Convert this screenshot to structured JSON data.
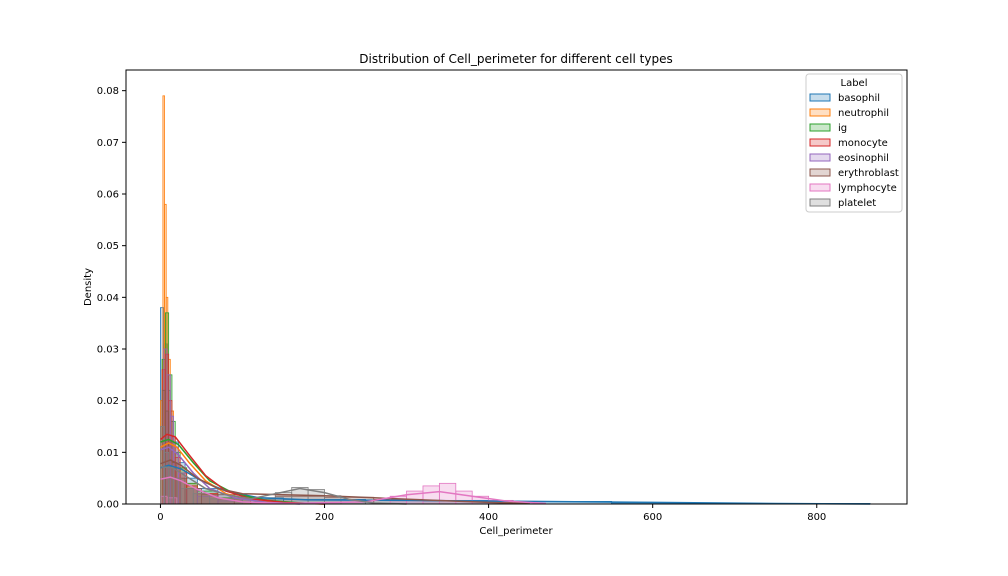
{
  "chart_data": {
    "type": "histogram",
    "title": "Distribution of Cell_perimeter for different cell types",
    "xlabel": "Cell_perimeter",
    "ylabel": "Density",
    "xlim": [
      -42,
      910
    ],
    "ylim": [
      0,
      0.084
    ],
    "x_ticks": [
      0,
      200,
      400,
      600,
      800
    ],
    "y_ticks": [
      0.0,
      0.01,
      0.02,
      0.03,
      0.04,
      0.05,
      0.06,
      0.07,
      0.08
    ],
    "y_tick_labels": [
      "0.00",
      "0.01",
      "0.02",
      "0.03",
      "0.04",
      "0.05",
      "0.06",
      "0.07",
      "0.08"
    ],
    "legend": {
      "title": "Label",
      "placement": "upper-right",
      "entries": [
        "basophil",
        "neutrophil",
        "ig",
        "monocyte",
        "eosinophil",
        "erythroblast",
        "lymphocyte",
        "platelet"
      ]
    },
    "grid": false,
    "series": [
      {
        "name": "basophil",
        "color": "#1f77b4",
        "hist": [
          [
            0,
            4,
            0.038
          ],
          [
            4,
            8,
            0.031
          ],
          [
            8,
            12,
            0.022
          ],
          [
            12,
            16,
            0.016
          ],
          [
            16,
            22,
            0.012
          ],
          [
            22,
            30,
            0.008
          ],
          [
            30,
            45,
            0.005
          ],
          [
            45,
            70,
            0.003
          ],
          [
            70,
            100,
            0.0018
          ],
          [
            100,
            150,
            0.0012
          ],
          [
            150,
            250,
            0.0009
          ],
          [
            250,
            400,
            0.0007
          ],
          [
            400,
            550,
            0.0005
          ],
          [
            550,
            700,
            0.0002
          ],
          [
            700,
            865,
            0.0001
          ]
        ],
        "kde": [
          [
            0,
            0.007
          ],
          [
            10,
            0.0075
          ],
          [
            25,
            0.0068
          ],
          [
            50,
            0.0045
          ],
          [
            80,
            0.0025
          ],
          [
            120,
            0.0012
          ],
          [
            180,
            0.0008
          ],
          [
            300,
            0.0007
          ],
          [
            450,
            0.0005
          ],
          [
            600,
            0.0003
          ],
          [
            750,
            0.0001
          ],
          [
            865,
            0.0
          ]
        ]
      },
      {
        "name": "neutrophil",
        "color": "#ff7f0e",
        "hist": [
          [
            0,
            3,
            0.02
          ],
          [
            3,
            5,
            0.079
          ],
          [
            5,
            7,
            0.058
          ],
          [
            7,
            9,
            0.04
          ],
          [
            9,
            12,
            0.028
          ],
          [
            12,
            16,
            0.018
          ],
          [
            16,
            22,
            0.011
          ],
          [
            22,
            30,
            0.007
          ],
          [
            30,
            45,
            0.004
          ],
          [
            45,
            70,
            0.002
          ],
          [
            70,
            100,
            0.001
          ],
          [
            100,
            150,
            0.0004
          ]
        ],
        "kde": [
          [
            0,
            0.011
          ],
          [
            10,
            0.0118
          ],
          [
            20,
            0.011
          ],
          [
            35,
            0.008
          ],
          [
            55,
            0.0045
          ],
          [
            80,
            0.002
          ],
          [
            110,
            0.0008
          ],
          [
            150,
            0.0002
          ],
          [
            200,
            0.0
          ]
        ]
      },
      {
        "name": "ig",
        "color": "#2ca02c",
        "hist": [
          [
            2,
            6,
            0.028
          ],
          [
            6,
            10,
            0.037
          ],
          [
            10,
            14,
            0.025
          ],
          [
            14,
            18,
            0.016
          ],
          [
            18,
            24,
            0.01
          ],
          [
            24,
            32,
            0.007
          ],
          [
            32,
            45,
            0.004
          ],
          [
            45,
            70,
            0.0025
          ],
          [
            70,
            110,
            0.0012
          ],
          [
            110,
            160,
            0.0004
          ]
        ],
        "kde": [
          [
            0,
            0.012
          ],
          [
            10,
            0.0125
          ],
          [
            22,
            0.0115
          ],
          [
            40,
            0.008
          ],
          [
            60,
            0.0045
          ],
          [
            90,
            0.002
          ],
          [
            130,
            0.0007
          ],
          [
            180,
            0.0001
          ]
        ]
      },
      {
        "name": "monocyte",
        "color": "#d62728",
        "hist": [
          [
            2,
            6,
            0.026
          ],
          [
            6,
            10,
            0.029
          ],
          [
            10,
            14,
            0.02
          ],
          [
            14,
            18,
            0.013
          ],
          [
            18,
            24,
            0.009
          ],
          [
            24,
            32,
            0.006
          ],
          [
            32,
            45,
            0.0035
          ],
          [
            45,
            70,
            0.002
          ],
          [
            70,
            110,
            0.001
          ],
          [
            110,
            160,
            0.0003
          ]
        ],
        "kde": [
          [
            0,
            0.0125
          ],
          [
            8,
            0.0135
          ],
          [
            18,
            0.013
          ],
          [
            35,
            0.0095
          ],
          [
            55,
            0.0055
          ],
          [
            80,
            0.0025
          ],
          [
            110,
            0.001
          ],
          [
            150,
            0.0003
          ],
          [
            200,
            0.0
          ]
        ]
      },
      {
        "name": "eosinophil",
        "color": "#9467bd",
        "hist": [
          [
            4,
            8,
            0.03
          ],
          [
            8,
            12,
            0.025
          ],
          [
            12,
            16,
            0.017
          ],
          [
            16,
            22,
            0.011
          ],
          [
            22,
            30,
            0.006
          ],
          [
            30,
            45,
            0.003
          ],
          [
            45,
            70,
            0.0015
          ],
          [
            70,
            100,
            0.0006
          ]
        ],
        "kde": [
          [
            0,
            0.0105
          ],
          [
            10,
            0.011
          ],
          [
            22,
            0.0095
          ],
          [
            40,
            0.006
          ],
          [
            60,
            0.003
          ],
          [
            90,
            0.0012
          ],
          [
            130,
            0.0003
          ],
          [
            170,
            0.0
          ]
        ]
      },
      {
        "name": "erythroblast",
        "color": "#8c564b",
        "hist": [
          [
            2,
            6,
            0.022
          ],
          [
            6,
            10,
            0.018
          ],
          [
            10,
            14,
            0.012
          ],
          [
            14,
            20,
            0.008
          ],
          [
            20,
            30,
            0.005
          ],
          [
            30,
            50,
            0.003
          ],
          [
            50,
            90,
            0.0018
          ],
          [
            90,
            140,
            0.0012
          ],
          [
            140,
            200,
            0.0015
          ],
          [
            200,
            260,
            0.0013
          ],
          [
            260,
            320,
            0.0009
          ],
          [
            320,
            400,
            0.0006
          ],
          [
            400,
            450,
            0.0003
          ]
        ],
        "kde": [
          [
            0,
            0.0078
          ],
          [
            12,
            0.0085
          ],
          [
            25,
            0.0075
          ],
          [
            45,
            0.005
          ],
          [
            70,
            0.003
          ],
          [
            100,
            0.002
          ],
          [
            150,
            0.0018
          ],
          [
            200,
            0.0016
          ],
          [
            260,
            0.0012
          ],
          [
            320,
            0.0008
          ],
          [
            400,
            0.0003
          ],
          [
            450,
            0.0001
          ]
        ]
      },
      {
        "name": "lymphocyte",
        "color": "#e377c2",
        "hist": [
          [
            0,
            8,
            0.0015
          ],
          [
            8,
            20,
            0.0012
          ],
          [
            280,
            300,
            0.0015
          ],
          [
            300,
            320,
            0.0025
          ],
          [
            320,
            340,
            0.0035
          ],
          [
            340,
            360,
            0.004
          ],
          [
            360,
            380,
            0.0025
          ],
          [
            380,
            400,
            0.0015
          ],
          [
            400,
            430,
            0.0007
          ]
        ],
        "kde": [
          [
            0,
            0.0048
          ],
          [
            12,
            0.0052
          ],
          [
            25,
            0.0045
          ],
          [
            45,
            0.0028
          ],
          [
            70,
            0.0012
          ],
          [
            100,
            0.0004
          ],
          [
            150,
            0.0001
          ],
          [
            250,
            0.0004
          ],
          [
            300,
            0.0018
          ],
          [
            340,
            0.0024
          ],
          [
            380,
            0.0015
          ],
          [
            420,
            0.0006
          ],
          [
            470,
            0.0001
          ]
        ]
      },
      {
        "name": "platelet",
        "color": "#7f7f7f",
        "hist": [
          [
            0,
            5,
            0.015
          ],
          [
            5,
            10,
            0.01
          ],
          [
            10,
            16,
            0.007
          ],
          [
            16,
            25,
            0.005
          ],
          [
            25,
            40,
            0.003
          ],
          [
            40,
            60,
            0.002
          ],
          [
            60,
            100,
            0.001
          ],
          [
            100,
            140,
            0.0009
          ],
          [
            140,
            160,
            0.0022
          ],
          [
            160,
            180,
            0.0032
          ],
          [
            180,
            200,
            0.0028
          ],
          [
            200,
            220,
            0.0016
          ],
          [
            220,
            250,
            0.0008
          ]
        ],
        "kde": [
          [
            0,
            0.0072
          ],
          [
            15,
            0.007
          ],
          [
            35,
            0.005
          ],
          [
            55,
            0.003
          ],
          [
            80,
            0.0018
          ],
          [
            110,
            0.001
          ],
          [
            140,
            0.002
          ],
          [
            170,
            0.003
          ],
          [
            200,
            0.0022
          ],
          [
            230,
            0.0009
          ],
          [
            260,
            0.0002
          ],
          [
            300,
            0.0
          ]
        ]
      }
    ]
  }
}
